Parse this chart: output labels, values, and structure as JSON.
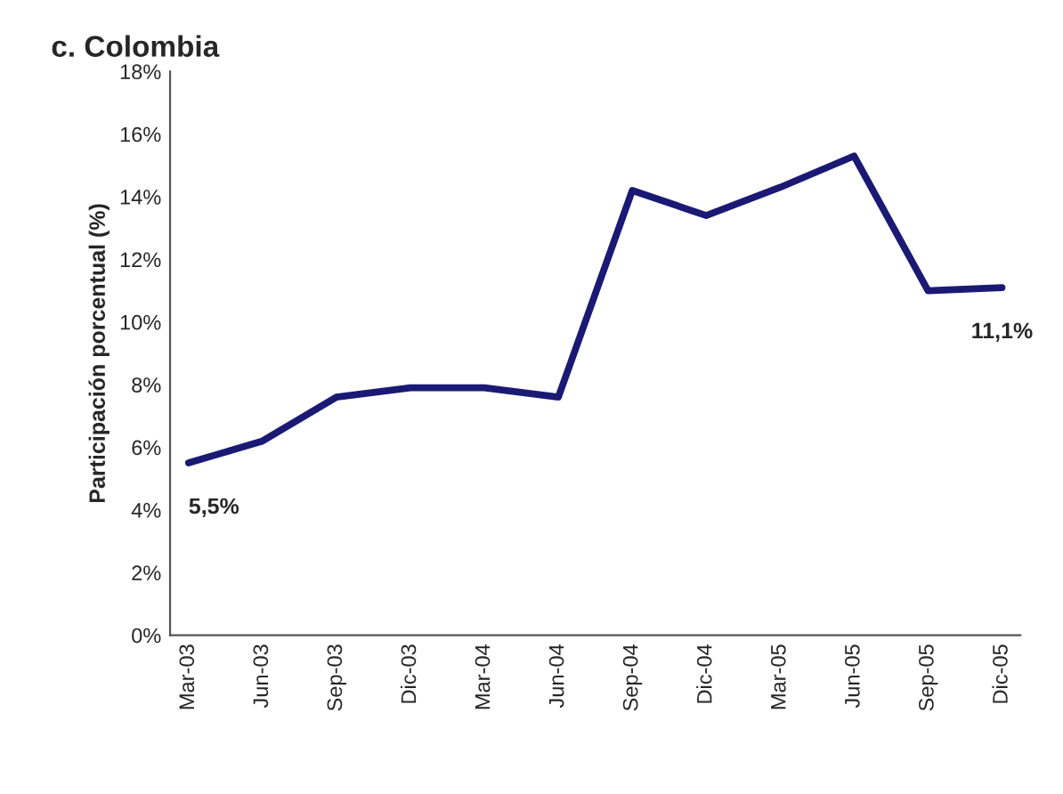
{
  "chart_data": {
    "type": "line",
    "title": "c. Colombia",
    "ylabel": "Participación porcentual (%)",
    "categories": [
      "Mar-03",
      "Jun-03",
      "Sep-03",
      "Dic-03",
      "Mar-04",
      "Jun-04",
      "Sep-04",
      "Dic-04",
      "Mar-05",
      "Jun-05",
      "Sep-05",
      "Dic-05"
    ],
    "series": [
      {
        "color": "#1a1a75",
        "values": [
          5.5,
          6.2,
          7.6,
          7.9,
          7.9,
          7.6,
          14.2,
          13.4,
          14.3,
          15.3,
          11.0,
          11.1
        ],
        "value_labels": [
          "5,5%",
          null,
          null,
          null,
          null,
          null,
          null,
          null,
          null,
          null,
          null,
          "11,1%"
        ]
      }
    ],
    "ylim": [
      0,
      18
    ],
    "yticks": [
      {
        "value": 0,
        "label": "0%"
      },
      {
        "value": 2,
        "label": "2%"
      },
      {
        "value": 4,
        "label": "4%"
      },
      {
        "value": 6,
        "label": "6%"
      },
      {
        "value": 8,
        "label": "8%"
      },
      {
        "value": 10,
        "label": "10%"
      },
      {
        "value": 12,
        "label": "12%"
      },
      {
        "value": 14,
        "label": "14%"
      },
      {
        "value": 16,
        "label": "16%"
      },
      {
        "value": 18,
        "label": "18%"
      }
    ],
    "grid": false,
    "legend": false,
    "marker": "none",
    "line_style": "solid"
  }
}
